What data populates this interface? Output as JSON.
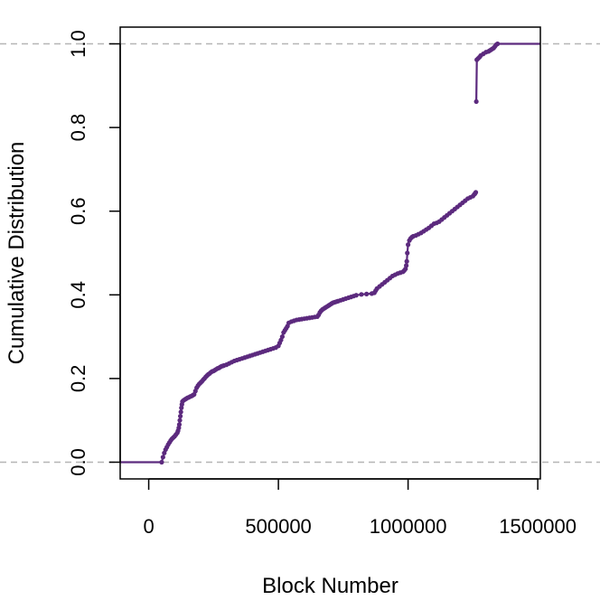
{
  "chart_data": {
    "type": "scatter",
    "title": "",
    "xlabel": "Block Number",
    "ylabel": "Cumulative Distribution",
    "xlim": [
      -110000,
      1510000
    ],
    "ylim": [
      -0.04,
      1.04
    ],
    "x_ticks": [
      0,
      500000,
      1000000,
      1500000
    ],
    "x_tick_labels": [
      "0",
      "500000",
      "1000000",
      "1500000"
    ],
    "y_ticks": [
      0.0,
      0.2,
      0.4,
      0.6,
      0.8,
      1.0
    ],
    "y_tick_labels": [
      "0.0",
      "0.2",
      "0.4",
      "0.6",
      "0.8",
      "1.0"
    ],
    "reference_lines_y": [
      0.0,
      1.0
    ],
    "colors": {
      "points": "#5c2a7e",
      "reference_line": "#b5b5b5"
    },
    "grid": false,
    "series": [
      {
        "x": [
          -160000,
          50000,
          55000,
          60000,
          65000,
          70000,
          75000,
          80000,
          85000,
          90000,
          95000,
          100000,
          105000,
          110000,
          113000,
          116000,
          118000,
          120000,
          122000,
          124000,
          126000,
          128000,
          130000,
          135000,
          140000,
          145000,
          150000,
          155000,
          160000,
          165000,
          170000,
          175000,
          180000,
          185000,
          190000,
          195000,
          200000,
          205000,
          210000,
          215000,
          220000,
          225000,
          230000,
          235000,
          240000,
          245000,
          250000,
          255000,
          260000,
          265000,
          270000,
          275000,
          280000,
          285000,
          290000,
          300000,
          310000,
          320000,
          330000,
          340000,
          350000,
          360000,
          370000,
          380000,
          390000,
          400000,
          410000,
          420000,
          430000,
          440000,
          450000,
          460000,
          470000,
          480000,
          490000,
          500000,
          505000,
          510000,
          515000,
          520000,
          525000,
          530000,
          535000,
          540000,
          550000,
          560000,
          570000,
          580000,
          590000,
          600000,
          610000,
          620000,
          630000,
          640000,
          650000,
          655000,
          660000,
          665000,
          670000,
          675000,
          680000,
          685000,
          690000,
          695000,
          700000,
          705000,
          710000,
          715000,
          720000,
          725000,
          730000,
          740000,
          750000,
          760000,
          770000,
          780000,
          790000,
          800000,
          820000,
          840000,
          860000,
          870000,
          875000,
          880000,
          890000,
          900000,
          910000,
          920000,
          930000,
          940000,
          950000,
          960000,
          970000,
          980000,
          985000,
          990000,
          993000,
          995000,
          997000,
          1000000,
          1005000,
          1010000,
          1015000,
          1020000,
          1030000,
          1040000,
          1050000,
          1060000,
          1070000,
          1080000,
          1090000,
          1100000,
          1110000,
          1120000,
          1130000,
          1140000,
          1150000,
          1160000,
          1170000,
          1180000,
          1190000,
          1200000,
          1210000,
          1220000,
          1230000,
          1240000,
          1250000,
          1255000,
          1258000,
          1261000,
          1263000,
          1265000,
          1270000,
          1275000,
          1280000,
          1290000,
          1300000,
          1310000,
          1315000,
          1320000,
          1325000,
          1330000,
          1335000,
          1340000,
          1345000,
          1600000
        ],
        "y": [
          0.0,
          0.0,
          0.012,
          0.022,
          0.03,
          0.036,
          0.042,
          0.047,
          0.052,
          0.056,
          0.059,
          0.062,
          0.066,
          0.07,
          0.075,
          0.082,
          0.09,
          0.1,
          0.11,
          0.12,
          0.13,
          0.138,
          0.145,
          0.148,
          0.15,
          0.152,
          0.154,
          0.155,
          0.157,
          0.158,
          0.16,
          0.162,
          0.17,
          0.178,
          0.183,
          0.187,
          0.19,
          0.193,
          0.197,
          0.2,
          0.204,
          0.207,
          0.21,
          0.212,
          0.215,
          0.217,
          0.218,
          0.22,
          0.222,
          0.224,
          0.225,
          0.227,
          0.229,
          0.23,
          0.231,
          0.233,
          0.236,
          0.239,
          0.242,
          0.244,
          0.246,
          0.248,
          0.25,
          0.252,
          0.254,
          0.256,
          0.258,
          0.26,
          0.262,
          0.264,
          0.266,
          0.268,
          0.27,
          0.272,
          0.274,
          0.278,
          0.285,
          0.292,
          0.3,
          0.31,
          0.315,
          0.32,
          0.325,
          0.333,
          0.336,
          0.338,
          0.34,
          0.341,
          0.342,
          0.343,
          0.344,
          0.345,
          0.346,
          0.347,
          0.348,
          0.352,
          0.358,
          0.362,
          0.365,
          0.367,
          0.369,
          0.371,
          0.373,
          0.375,
          0.377,
          0.379,
          0.381,
          0.382,
          0.383,
          0.384,
          0.385,
          0.387,
          0.389,
          0.391,
          0.393,
          0.395,
          0.397,
          0.399,
          0.401,
          0.402,
          0.403,
          0.405,
          0.41,
          0.415,
          0.42,
          0.425,
          0.43,
          0.435,
          0.44,
          0.445,
          0.448,
          0.451,
          0.453,
          0.455,
          0.458,
          0.462,
          0.47,
          0.48,
          0.5,
          0.52,
          0.53,
          0.535,
          0.538,
          0.54,
          0.542,
          0.545,
          0.548,
          0.552,
          0.556,
          0.56,
          0.565,
          0.57,
          0.572,
          0.575,
          0.58,
          0.585,
          0.59,
          0.595,
          0.6,
          0.605,
          0.61,
          0.615,
          0.62,
          0.625,
          0.63,
          0.633,
          0.636,
          0.64,
          0.642,
          0.645,
          0.862,
          0.962,
          0.965,
          0.968,
          0.972,
          0.976,
          0.98,
          0.982,
          0.984,
          0.986,
          0.988,
          0.99,
          0.994,
          0.998,
          1.0,
          1.0
        ]
      }
    ]
  }
}
